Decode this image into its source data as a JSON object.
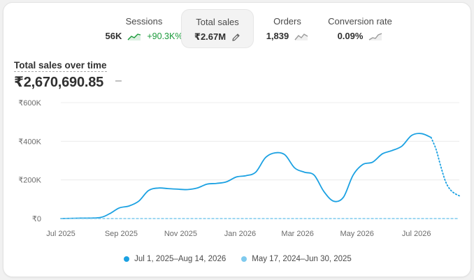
{
  "metrics": [
    {
      "label": "Sessions",
      "value": "56K",
      "change": "+90.3K%",
      "spark_color": "#1a9a3a"
    },
    {
      "label": "Total sales",
      "value": "₹2.67M",
      "icon": "pencil-icon"
    },
    {
      "label": "Orders",
      "value": "1,839",
      "spark_color": "#9a9a9a"
    },
    {
      "label": "Conversion rate",
      "value": "0.09%",
      "spark_color": "#9a9a9a"
    }
  ],
  "chart_title": "Total sales over time",
  "total_value": "₹2,670,690.85",
  "total_change": "–",
  "legend": [
    {
      "label": "Jul 1, 2025–Aug 14, 2026",
      "color": "#1ba1e2"
    },
    {
      "label": "May 17, 2024–Jun 30, 2025",
      "color": "#7fcaee"
    }
  ],
  "chart_data": {
    "type": "line",
    "y_tick_labels": [
      "₹600K",
      "₹400K",
      "₹200K",
      "₹0"
    ],
    "y_ticks": [
      600000,
      400000,
      200000,
      0
    ],
    "ylim": [
      0,
      600000
    ],
    "x_tick_labels": [
      "Jul 2025",
      "Sep 2025",
      "Nov 2025",
      "Jan 2026",
      "Mar 2026",
      "May 2026",
      "Jul 2026"
    ],
    "x_tick_dates": [
      "2025-07-01",
      "2025-09-01",
      "2025-11-01",
      "2026-01-01",
      "2026-03-01",
      "2026-05-01",
      "2026-07-01"
    ],
    "xlim": [
      "2025-07-01",
      "2026-08-14"
    ],
    "series": [
      {
        "name": "Jul 1, 2025–Aug 14, 2026",
        "color": "#1ba1e2",
        "style": "solid",
        "x": [
          "2025-07-01",
          "2025-07-21",
          "2025-08-10",
          "2025-08-20",
          "2025-08-30",
          "2025-09-09",
          "2025-09-19",
          "2025-09-29",
          "2025-10-09",
          "2025-10-19",
          "2025-10-29",
          "2025-11-08",
          "2025-11-18",
          "2025-11-28",
          "2025-12-08",
          "2025-12-18",
          "2025-12-28",
          "2026-01-07",
          "2026-01-17",
          "2026-01-27",
          "2026-02-06",
          "2026-02-16",
          "2026-02-26",
          "2026-03-08",
          "2026-03-18",
          "2026-03-28",
          "2026-04-07",
          "2026-04-17",
          "2026-04-27",
          "2026-05-07",
          "2026-05-17",
          "2026-05-27",
          "2026-06-06",
          "2026-06-16",
          "2026-06-26",
          "2026-07-06",
          "2026-07-16"
        ],
        "y": [
          0,
          2000,
          5000,
          25000,
          55000,
          65000,
          90000,
          145000,
          158000,
          155000,
          152000,
          150000,
          158000,
          178000,
          182000,
          190000,
          215000,
          222000,
          240000,
          315000,
          340000,
          330000,
          262000,
          240000,
          225000,
          140000,
          90000,
          110000,
          225000,
          280000,
          292000,
          335000,
          352000,
          375000,
          430000,
          440000,
          420000
        ]
      },
      {
        "name": "Jul 1, 2025–Aug 14, 2026 (projection)",
        "color": "#1ba1e2",
        "style": "dotted",
        "x": [
          "2026-07-16",
          "2026-07-21",
          "2026-07-26",
          "2026-07-31",
          "2026-08-05",
          "2026-08-10",
          "2026-08-14"
        ],
        "y": [
          420000,
          360000,
          270000,
          190000,
          148000,
          128000,
          118000
        ]
      },
      {
        "name": "May 17, 2024–Jun 30, 2025",
        "color": "#1ba1e2",
        "style": "dashed",
        "x": [
          "2025-07-01",
          "2026-08-14"
        ],
        "y": [
          0,
          0
        ]
      }
    ]
  }
}
